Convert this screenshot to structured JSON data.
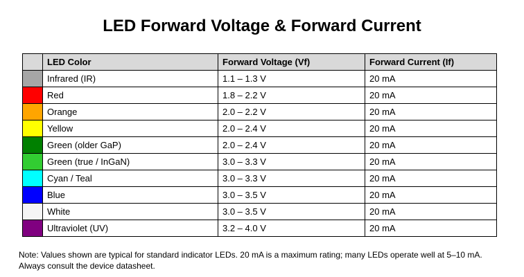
{
  "title": "LED Forward Voltage & Forward Current",
  "table": {
    "headers": [
      "LED Color",
      "Forward Voltage (Vf)",
      "Forward Current (If)"
    ],
    "header_bg": "#d9d9d9",
    "rows": [
      {
        "swatch": "#a6a6a6",
        "color": "Infrared (IR)",
        "vf": "1.1 – 1.3 V",
        "if": "20 mA"
      },
      {
        "swatch": "#ff0000",
        "color": "Red",
        "vf": "1.8 – 2.2 V",
        "if": "20 mA"
      },
      {
        "swatch": "#ffa500",
        "color": "Orange",
        "vf": "2.0 – 2.2 V",
        "if": "20 mA"
      },
      {
        "swatch": "#ffff00",
        "color": "Yellow",
        "vf": "2.0 – 2.4 V",
        "if": "20 mA"
      },
      {
        "swatch": "#008000",
        "color": "Green (older GaP)",
        "vf": "2.0 – 2.4 V",
        "if": "20 mA"
      },
      {
        "swatch": "#32cd32",
        "color": "Green (true / InGaN)",
        "vf": "3.0 – 3.3 V",
        "if": "20 mA"
      },
      {
        "swatch": "#00ffff",
        "color": "Cyan / Teal",
        "vf": "3.0 – 3.3 V",
        "if": "20 mA"
      },
      {
        "swatch": "#0000ff",
        "color": "Blue",
        "vf": "3.0 – 3.5 V",
        "if": "20 mA"
      },
      {
        "swatch": "#f5f5f5",
        "color": "White",
        "vf": "3.0 – 3.5 V",
        "if": "20 mA"
      },
      {
        "swatch": "#800080",
        "color": "Ultraviolet (UV)",
        "vf": "3.2 – 4.0 V",
        "if": "20 mA"
      }
    ]
  },
  "note": "Note: Values shown are typical for standard indicator LEDs. 20 mA is a maximum rating; many LEDs operate well at 5–10 mA. Always consult the device datasheet."
}
